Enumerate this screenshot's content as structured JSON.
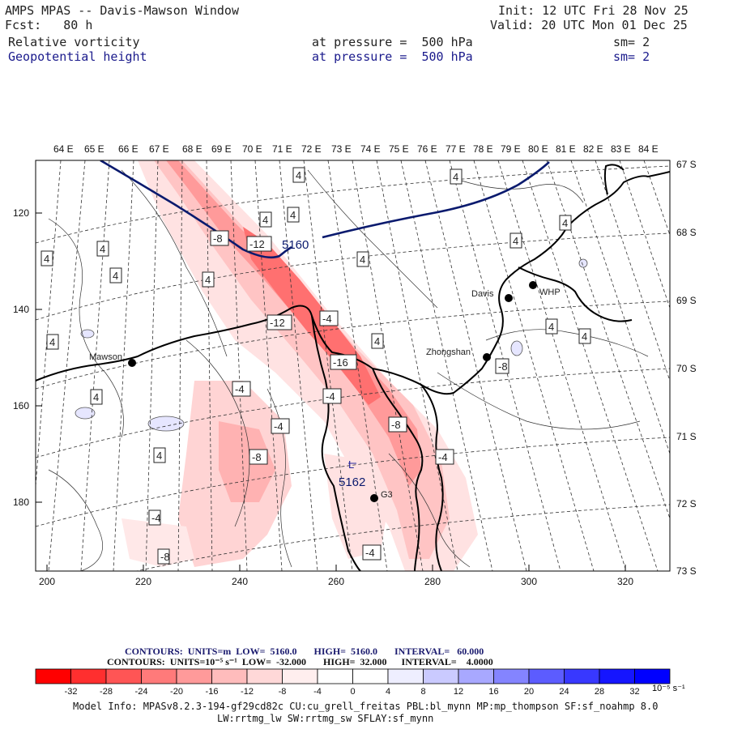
{
  "header": {
    "line1_left": "AMPS MPAS -- Davis-Mawson Window",
    "line1_right": "Init: 12 UTC Fri 28 Nov 25",
    "line2_left": "Fcst:   80 h",
    "line2_right": "Valid: 20 UTC Mon 01 Dec 25",
    "field1_name": "Relative vorticity",
    "field1_level": "at pressure =  500 hPa",
    "field1_sm": "sm= 2",
    "field2_name": "Geopotential height",
    "field2_level": "at pressure =  500 hPa",
    "field2_sm": "sm= 2"
  },
  "top_axis_labels": [
    "64 E",
    "65 E",
    "66 E",
    "67 E",
    "68 E",
    "69 E",
    "70 E",
    "71 E",
    "72 E",
    "73 E",
    "74 E",
    "75 E",
    "76 E",
    "77 E",
    "78 E",
    "79 E",
    "80 E",
    "81 E",
    "82 E",
    "83 E",
    "84 E"
  ],
  "right_axis_labels": [
    "67 S",
    "68 S",
    "69 S",
    "70 S",
    "71 S",
    "72 S",
    "73 S"
  ],
  "left_axis_labels": [
    "120",
    "140",
    "160",
    "180"
  ],
  "bottom_axis_labels": [
    "200",
    "220",
    "240",
    "260",
    "280",
    "300",
    "320"
  ],
  "stations": [
    {
      "name": "Mawson"
    },
    {
      "name": "Davis"
    },
    {
      "name": "WHP"
    },
    {
      "name": "Zhongshan"
    },
    {
      "name": "G3"
    }
  ],
  "height_labels": [
    "5160",
    "5162"
  ],
  "height_low_marker": "L",
  "vort_labels": [
    "4",
    "4",
    "4",
    "4",
    "4",
    "4",
    "4",
    "4",
    "4",
    "4",
    "4",
    "4",
    "4",
    "4",
    "4",
    "4",
    "4",
    "-4",
    "-4",
    "-4",
    "-4",
    "-4",
    "-4",
    "-4",
    "-8",
    "-8",
    "-8",
    "-8",
    "-8",
    "-12",
    "-12",
    "-16"
  ],
  "legend": {
    "contours1": "CONTOURS:  UNITS=m  LOW=  5160.0       HIGH=  5160.0       INTERVAL=   60.000",
    "contours2": "CONTOURS:  UNITS=10⁻⁵ s⁻¹  LOW=  -32.000       HIGH=  32.000      INTERVAL=    4.0000",
    "colorbar_values": [
      "-32",
      "-28",
      "-24",
      "-20",
      "-16",
      "-12",
      "-8",
      "-4",
      "0",
      "4",
      "8",
      "12",
      "16",
      "20",
      "24",
      "28",
      "32"
    ],
    "colorbar_colors": [
      "#ff0000",
      "#ff2f2f",
      "#ff5555",
      "#ff7a7a",
      "#ff9a9a",
      "#ffbcbc",
      "#ffd8d8",
      "#ffeeee",
      "#ffffff",
      "#ffffff",
      "#eeeeff",
      "#cacaff",
      "#a8a8ff",
      "#8484ff",
      "#5c5cff",
      "#3838ff",
      "#1515ff",
      "#0000ff"
    ],
    "units_label": "10⁻⁵ s⁻¹"
  },
  "model_info": {
    "line1": "Model Info: MPASv8.2.3-194-gf29cd82c CU:cu_grell_freitas PBL:bl_mynn MP:mp_thompson SF:sf_noahmp 8.0",
    "line2": "LW:rrtmg_lw SW:rrtmg_sw SFLAY:sf_mynn"
  }
}
